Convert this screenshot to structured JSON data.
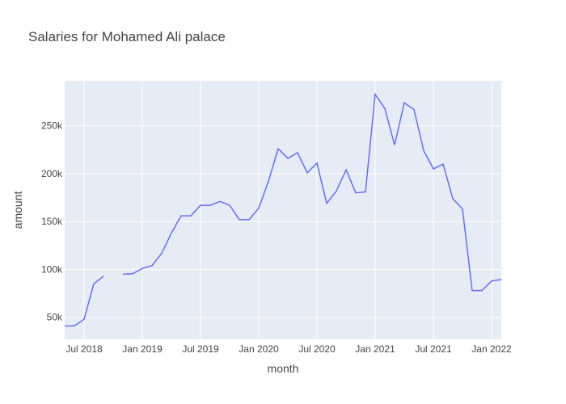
{
  "chart_data": {
    "type": "line",
    "title": "Salaries for Mohamed Ali palace",
    "x_label": "month",
    "y_label": "amount",
    "color": "#636efa",
    "grid": true,
    "x": [
      "2018-05",
      "2018-06",
      "2018-07",
      "2018-08",
      "2018-09",
      "2018-10",
      "2018-11",
      "2018-12",
      "2019-01",
      "2019-02",
      "2019-03",
      "2019-04",
      "2019-05",
      "2019-06",
      "2019-07",
      "2019-08",
      "2019-09",
      "2019-10",
      "2019-11",
      "2019-12",
      "2020-01",
      "2020-02",
      "2020-03",
      "2020-04",
      "2020-05",
      "2020-06",
      "2020-07",
      "2020-08",
      "2020-09",
      "2020-10",
      "2020-11",
      "2020-12",
      "2021-01",
      "2021-02",
      "2021-03",
      "2021-04",
      "2021-05",
      "2021-06",
      "2021-07",
      "2021-08",
      "2021-09",
      "2021-10",
      "2021-11",
      "2021-12",
      "2022-01",
      "2022-02"
    ],
    "values": [
      41000,
      41000,
      48000,
      85000,
      93000,
      null,
      95000,
      95500,
      101000,
      104000,
      117000,
      138000,
      156000,
      156000,
      167000,
      167000,
      171000,
      167000,
      152000,
      152000,
      164000,
      192000,
      226000,
      216000,
      222000,
      201000,
      211000,
      169000,
      182000,
      204000,
      180000,
      181000,
      283000,
      268000,
      230000,
      274000,
      267000,
      224000,
      205000,
      210000,
      174000,
      163000,
      78000,
      78000,
      88000,
      89500
    ],
    "xlim": [
      "2018-05",
      "2022-02"
    ],
    "xticks": [
      {
        "value": "2018-07",
        "label": "Jul 2018"
      },
      {
        "value": "2019-01",
        "label": "Jan 2019"
      },
      {
        "value": "2019-07",
        "label": "Jul 2019"
      },
      {
        "value": "2020-01",
        "label": "Jan 2020"
      },
      {
        "value": "2020-07",
        "label": "Jul 2020"
      },
      {
        "value": "2021-01",
        "label": "Jan 2021"
      },
      {
        "value": "2021-07",
        "label": "Jul 2021"
      },
      {
        "value": "2022-01",
        "label": "Jan 2022"
      }
    ],
    "ylim": [
      27000,
      297000
    ],
    "yticks": [
      {
        "value": 50000,
        "label": "50k"
      },
      {
        "value": 100000,
        "label": "100k"
      },
      {
        "value": 150000,
        "label": "150k"
      },
      {
        "value": 200000,
        "label": "200k"
      },
      {
        "value": 250000,
        "label": "250k"
      }
    ]
  }
}
